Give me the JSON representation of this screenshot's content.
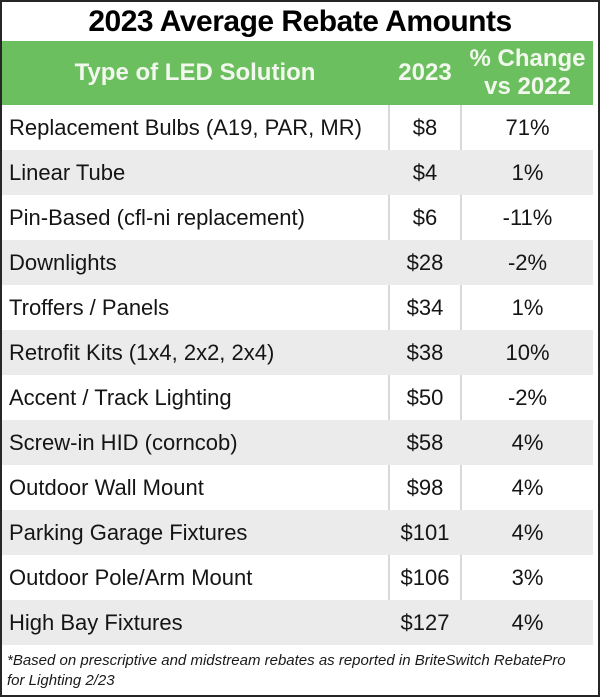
{
  "title": "2023 Average Rebate Amounts",
  "colors": {
    "header_bg": "#6cbf5f",
    "header_text": "#f2f8ee",
    "alt_row_bg": "#ebebeb",
    "divider": "#d8d8d8",
    "frame_border": "#262626",
    "text": "#151515"
  },
  "table": {
    "columns": [
      {
        "label": "Type of LED Solution"
      },
      {
        "label": "2023"
      },
      {
        "label": "% Change vs 2022"
      }
    ],
    "rows": [
      {
        "type": "Replacement Bulbs (A19, PAR, MR)",
        "amount": "$8",
        "change": "71%"
      },
      {
        "type": "Linear Tube",
        "amount": "$4",
        "change": "1%"
      },
      {
        "type": "Pin-Based (cfl-ni replacement)",
        "amount": "$6",
        "change": "-11%"
      },
      {
        "type": "Downlights",
        "amount": "$28",
        "change": "-2%"
      },
      {
        "type": "Troffers / Panels",
        "amount": "$34",
        "change": "1%"
      },
      {
        "type": "Retrofit Kits (1x4, 2x2, 2x4)",
        "amount": "$38",
        "change": "10%"
      },
      {
        "type": "Accent / Track Lighting",
        "amount": "$50",
        "change": "-2%"
      },
      {
        "type": "Screw-in HID (corncob)",
        "amount": "$58",
        "change": "4%"
      },
      {
        "type": "Outdoor Wall Mount",
        "amount": "$98",
        "change": "4%"
      },
      {
        "type": "Parking Garage Fixtures",
        "amount": "$101",
        "change": "4%"
      },
      {
        "type": "Outdoor Pole/Arm Mount",
        "amount": "$106",
        "change": "3%"
      },
      {
        "type": "High Bay Fixtures",
        "amount": "$127",
        "change": "4%"
      }
    ]
  },
  "footnote": "*Based on prescriptive and midstream rebates as reported in BriteSwitch RebatePro for Lighting 2/23",
  "chart_data": {
    "type": "table",
    "title": "2023 Average Rebate Amounts",
    "columns": [
      "Type of LED Solution",
      "2023",
      "% Change vs 2022"
    ],
    "rows": [
      [
        "Replacement Bulbs (A19, PAR, MR)",
        "$8",
        "71%"
      ],
      [
        "Linear Tube",
        "$4",
        "1%"
      ],
      [
        "Pin-Based (cfl-ni replacement)",
        "$6",
        "-11%"
      ],
      [
        "Downlights",
        "$28",
        "-2%"
      ],
      [
        "Troffers / Panels",
        "$34",
        "1%"
      ],
      [
        "Retrofit Kits (1x4, 2x2, 2x4)",
        "$38",
        "10%"
      ],
      [
        "Accent / Track Lighting",
        "$50",
        "-2%"
      ],
      [
        "Screw-in HID (corncob)",
        "$58",
        "4%"
      ],
      [
        "Outdoor Wall Mount",
        "$98",
        "4%"
      ],
      [
        "Parking Garage Fixtures",
        "$101",
        "4%"
      ],
      [
        "Outdoor Pole/Arm Mount",
        "$106",
        "3%"
      ],
      [
        "High Bay Fixtures",
        "$127",
        "4%"
      ]
    ],
    "series": [
      {
        "name": "2023 average rebate ($)",
        "values": [
          8,
          4,
          6,
          28,
          34,
          38,
          50,
          58,
          98,
          101,
          106,
          127
        ]
      },
      {
        "name": "% change vs 2022",
        "values": [
          71,
          1,
          -11,
          -2,
          1,
          10,
          -2,
          4,
          4,
          4,
          3,
          4
        ]
      }
    ],
    "categories": [
      "Replacement Bulbs (A19, PAR, MR)",
      "Linear Tube",
      "Pin-Based (cfl-ni replacement)",
      "Downlights",
      "Troffers / Panels",
      "Retrofit Kits (1x4, 2x2, 2x4)",
      "Accent / Track Lighting",
      "Screw-in HID (corncob)",
      "Outdoor Wall Mount",
      "Parking Garage Fixtures",
      "Outdoor Pole/Arm Mount",
      "High Bay Fixtures"
    ]
  }
}
